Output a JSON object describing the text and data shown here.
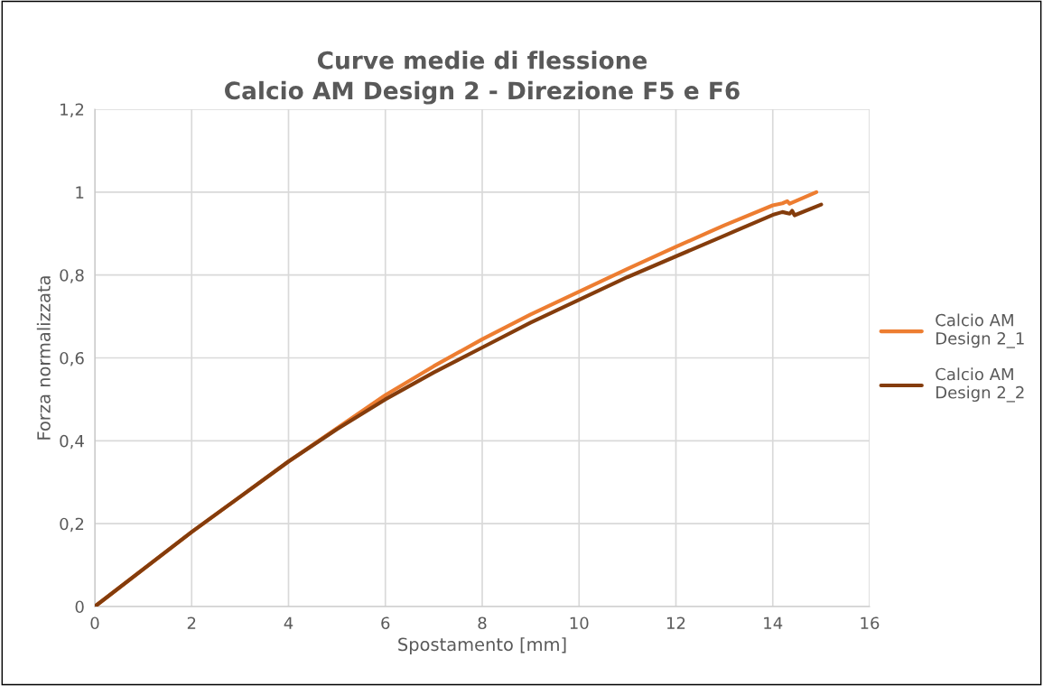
{
  "chart_data": {
    "type": "line",
    "title": "Curve medie di flessione\nCalcio AM Design 2 - Direzione F5 e F6",
    "xlabel": "Spostamento [mm]",
    "ylabel": "Forza normalizzata",
    "xlim": [
      0,
      16
    ],
    "xticks": [
      0,
      2,
      4,
      6,
      8,
      10,
      12,
      14,
      16
    ],
    "ylim": [
      0,
      1.2
    ],
    "yticks": [
      {
        "value": 0,
        "label": "0"
      },
      {
        "value": 0.2,
        "label": "0,2"
      },
      {
        "value": 0.4,
        "label": "0,4"
      },
      {
        "value": 0.6,
        "label": "0,6"
      },
      {
        "value": 0.8,
        "label": "0,8"
      },
      {
        "value": 1,
        "label": "1"
      },
      {
        "value": 1.2,
        "label": "1,2"
      }
    ],
    "grid": true,
    "legend": "right",
    "marker": "none",
    "line_style": "solid",
    "series": [
      {
        "name": "Calcio AM\nDesign 2_1",
        "color": "#ed7d31",
        "x": [
          0,
          1,
          2,
          3,
          4,
          5,
          6,
          7,
          8,
          9,
          10,
          11,
          12,
          13,
          14,
          14.2,
          14.3,
          14.35,
          14.9
        ],
        "values": [
          0,
          0.09,
          0.18,
          0.265,
          0.35,
          0.43,
          0.51,
          0.58,
          0.645,
          0.705,
          0.76,
          0.815,
          0.868,
          0.92,
          0.968,
          0.973,
          0.978,
          0.972,
          1.0
        ]
      },
      {
        "name": "Calcio AM\nDesign 2_2",
        "color": "#843c0c",
        "x": [
          0,
          1,
          2,
          3,
          4,
          5,
          6,
          7,
          8,
          9,
          10,
          11,
          12,
          13,
          14,
          14.2,
          14.35,
          14.4,
          14.45,
          15.0
        ],
        "values": [
          0,
          0.09,
          0.18,
          0.265,
          0.35,
          0.428,
          0.5,
          0.565,
          0.625,
          0.685,
          0.74,
          0.795,
          0.845,
          0.895,
          0.945,
          0.952,
          0.948,
          0.955,
          0.944,
          0.97
        ]
      }
    ]
  }
}
